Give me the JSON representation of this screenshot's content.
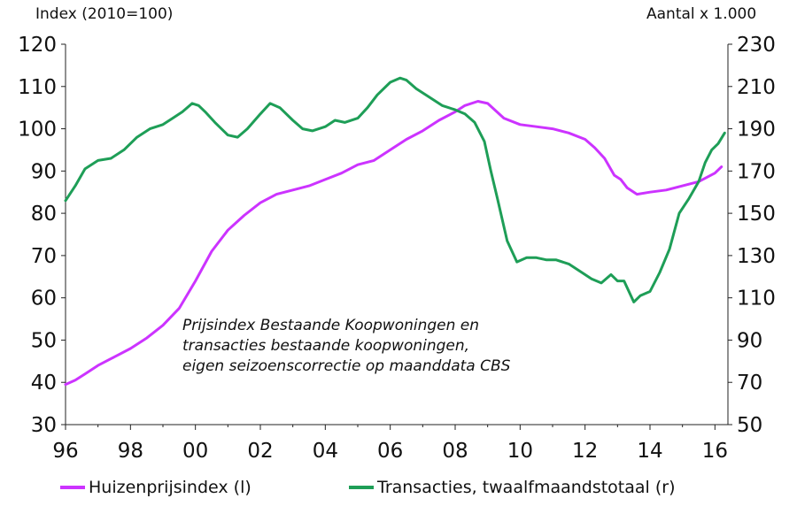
{
  "chart_data": {
    "type": "line",
    "left_axis_title": "Index (2010=100)",
    "right_axis_title": "Aantal x 1.000",
    "annotation": [
      "Prijsindex Bestaande Koopwoningen en",
      "transacties bestaande koopwoningen,",
      "eigen seizoenscorrectie op maanddata CBS"
    ],
    "x_ticks": [
      "96",
      "98",
      "00",
      "02",
      "04",
      "06",
      "08",
      "10",
      "12",
      "14",
      "16"
    ],
    "x_range": [
      1996,
      2016.4
    ],
    "y_left": {
      "range": [
        30,
        120
      ],
      "ticks": [
        30,
        40,
        50,
        60,
        70,
        80,
        90,
        100,
        110,
        120
      ]
    },
    "y_right": {
      "range": [
        50,
        230
      ],
      "ticks": [
        50,
        70,
        90,
        110,
        130,
        150,
        170,
        190,
        210,
        230
      ]
    },
    "grid": false,
    "legend_position": "bottom",
    "colors": {
      "price": "#cc33ff",
      "transactions": "#1e9e57"
    },
    "series": [
      {
        "name": "Huizenprijsindex (l)",
        "axis": "left",
        "x": [
          1996.0,
          1996.3,
          1996.6,
          1997.0,
          1997.5,
          1998.0,
          1998.5,
          1999.0,
          1999.5,
          2000.0,
          2000.5,
          2001.0,
          2001.5,
          2002.0,
          2002.5,
          2003.0,
          2003.5,
          2004.0,
          2004.5,
          2005.0,
          2005.5,
          2006.0,
          2006.5,
          2007.0,
          2007.5,
          2008.0,
          2008.3,
          2008.7,
          2009.0,
          2009.5,
          2010.0,
          2010.5,
          2011.0,
          2011.5,
          2012.0,
          2012.3,
          2012.6,
          2012.9,
          2013.1,
          2013.3,
          2013.6,
          2014.0,
          2014.5,
          2015.0,
          2015.5,
          2016.0,
          2016.2
        ],
        "values": [
          39.5,
          40.5,
          42,
          44,
          46,
          48,
          50.5,
          53.5,
          57.5,
          64,
          71,
          76,
          79.5,
          82.5,
          84.5,
          85.5,
          86.5,
          88,
          89.5,
          91.5,
          92.5,
          95,
          97.5,
          99.5,
          102,
          104,
          105.5,
          106.5,
          106,
          102.5,
          101,
          100.5,
          100,
          99,
          97.5,
          95.5,
          93,
          89,
          88,
          86,
          84.5,
          85,
          85.5,
          86.5,
          87.5,
          89.5,
          91
        ]
      },
      {
        "name": "Transacties, twaalfmaandstotaal (r)",
        "axis": "right",
        "x": [
          1996.0,
          1996.3,
          1996.6,
          1997.0,
          1997.4,
          1997.8,
          1998.2,
          1998.6,
          1999.0,
          1999.3,
          1999.6,
          1999.9,
          2000.1,
          2000.3,
          2000.6,
          2001.0,
          2001.3,
          2001.6,
          2002.0,
          2002.3,
          2002.6,
          2003.0,
          2003.3,
          2003.6,
          2004.0,
          2004.3,
          2004.6,
          2005.0,
          2005.3,
          2005.6,
          2006.0,
          2006.3,
          2006.5,
          2006.8,
          2007.2,
          2007.6,
          2008.0,
          2008.3,
          2008.6,
          2008.9,
          2009.1,
          2009.3,
          2009.6,
          2009.9,
          2010.2,
          2010.5,
          2010.8,
          2011.1,
          2011.5,
          2011.9,
          2012.2,
          2012.5,
          2012.8,
          2013.0,
          2013.2,
          2013.5,
          2013.7,
          2014.0,
          2014.3,
          2014.6,
          2014.9,
          2015.2,
          2015.5,
          2015.7,
          2015.9,
          2016.1,
          2016.3
        ],
        "values": [
          156,
          163,
          171,
          175,
          176,
          180,
          186,
          190,
          192,
          195,
          198,
          202,
          201,
          198,
          193,
          187,
          186,
          190,
          197,
          202,
          200,
          194,
          190,
          189,
          191,
          194,
          193,
          195,
          200,
          206,
          212,
          214,
          213,
          209,
          205,
          201,
          199,
          197,
          193,
          184,
          170,
          157,
          137,
          127,
          129,
          129,
          128,
          128,
          126,
          122,
          119,
          117,
          121,
          118,
          118,
          108,
          111,
          113,
          122,
          133,
          150,
          157,
          165,
          174,
          180,
          183,
          188
        ]
      }
    ]
  }
}
